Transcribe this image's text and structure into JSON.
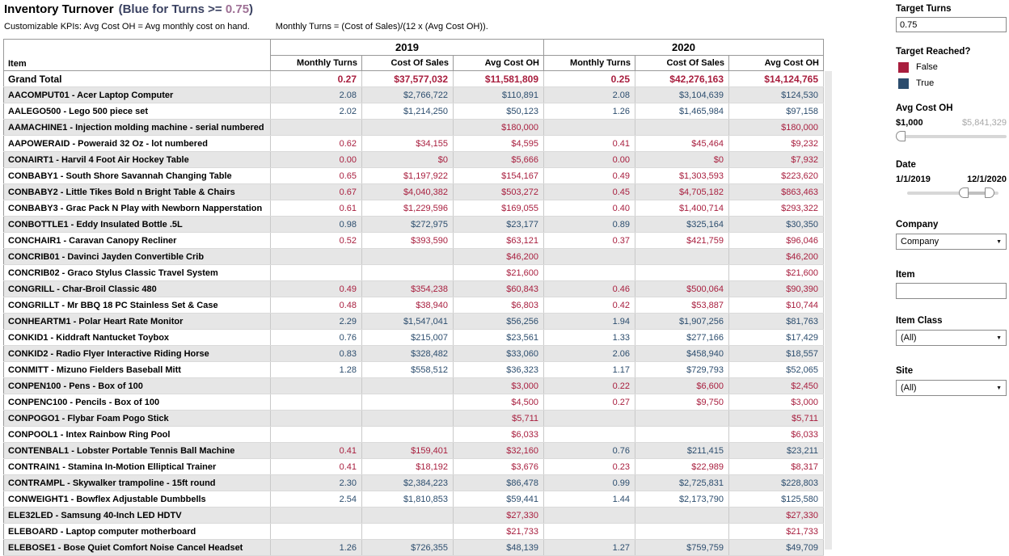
{
  "header": {
    "title": "Inventory Turnover",
    "title_note_prefix": "(Blue for Turns >= ",
    "title_note_value": "0.75",
    "title_note_suffix": ")",
    "subtitle_left": "Customizable KPIs: Avg Cost OH = Avg monthly cost on hand.",
    "subtitle_right": "Monthly Turns = (Cost of Sales)/(12 x (Avg Cost OH))."
  },
  "colors": {
    "target_not_reached": "#a81e3e",
    "target_reached": "#2c4d6e",
    "row_stripe": "#e6e6e6"
  },
  "table": {
    "item_header": "Item",
    "year_groups": [
      "2019",
      "2020"
    ],
    "columns": [
      "Monthly Turns",
      "Cost Of Sales",
      "Avg Cost OH"
    ],
    "grand_total": {
      "label": "Grand Total",
      "y2019": {
        "turns": "0.27",
        "cost_of_sales": "$37,577,032",
        "avg_cost_oh": "$11,581,809"
      },
      "y2020": {
        "turns": "0.25",
        "cost_of_sales": "$42,276,163",
        "avg_cost_oh": "$14,124,765"
      }
    },
    "rows": [
      {
        "item": "AACOMPUT01 - Acer Laptop Computer",
        "y2019": {
          "turns": "2.08",
          "cost_of_sales": "$2,766,722",
          "avg_cost_oh": "$110,891",
          "target_reached": true
        },
        "y2020": {
          "turns": "2.08",
          "cost_of_sales": "$3,104,639",
          "avg_cost_oh": "$124,530",
          "target_reached": true
        }
      },
      {
        "item": "AALEGO500 - Lego 500 piece set",
        "y2019": {
          "turns": "2.02",
          "cost_of_sales": "$1,214,250",
          "avg_cost_oh": "$50,123",
          "target_reached": true
        },
        "y2020": {
          "turns": "1.26",
          "cost_of_sales": "$1,465,984",
          "avg_cost_oh": "$97,158",
          "target_reached": true
        }
      },
      {
        "item": "AAMACHINE1 - Injection molding machine - serial numbered",
        "y2019": {
          "turns": "",
          "cost_of_sales": "",
          "avg_cost_oh": "$180,000",
          "target_reached": false
        },
        "y2020": {
          "turns": "",
          "cost_of_sales": "",
          "avg_cost_oh": "$180,000",
          "target_reached": false
        }
      },
      {
        "item": "AAPOWERAID - Poweraid 32 Oz - lot numbered",
        "y2019": {
          "turns": "0.62",
          "cost_of_sales": "$34,155",
          "avg_cost_oh": "$4,595",
          "target_reached": false
        },
        "y2020": {
          "turns": "0.41",
          "cost_of_sales": "$45,464",
          "avg_cost_oh": "$9,232",
          "target_reached": false
        }
      },
      {
        "item": "CONAIRT1 - Harvil 4 Foot Air Hockey Table",
        "y2019": {
          "turns": "0.00",
          "cost_of_sales": "$0",
          "avg_cost_oh": "$5,666",
          "target_reached": false
        },
        "y2020": {
          "turns": "0.00",
          "cost_of_sales": "$0",
          "avg_cost_oh": "$7,932",
          "target_reached": false
        }
      },
      {
        "item": "CONBABY1 - South Shore Savannah Changing Table",
        "y2019": {
          "turns": "0.65",
          "cost_of_sales": "$1,197,922",
          "avg_cost_oh": "$154,167",
          "target_reached": false
        },
        "y2020": {
          "turns": "0.49",
          "cost_of_sales": "$1,303,593",
          "avg_cost_oh": "$223,620",
          "target_reached": false
        }
      },
      {
        "item": "CONBABY2 - Little Tikes Bold n Bright Table & Chairs",
        "y2019": {
          "turns": "0.67",
          "cost_of_sales": "$4,040,382",
          "avg_cost_oh": "$503,272",
          "target_reached": false
        },
        "y2020": {
          "turns": "0.45",
          "cost_of_sales": "$4,705,182",
          "avg_cost_oh": "$863,463",
          "target_reached": false
        }
      },
      {
        "item": "CONBABY3 - Grac Pack N Play with Newborn Napperstation",
        "y2019": {
          "turns": "0.61",
          "cost_of_sales": "$1,229,596",
          "avg_cost_oh": "$169,055",
          "target_reached": false
        },
        "y2020": {
          "turns": "0.40",
          "cost_of_sales": "$1,400,714",
          "avg_cost_oh": "$293,322",
          "target_reached": false
        }
      },
      {
        "item": "CONBOTTLE1 - Eddy Insulated Bottle .5L",
        "y2019": {
          "turns": "0.98",
          "cost_of_sales": "$272,975",
          "avg_cost_oh": "$23,177",
          "target_reached": true
        },
        "y2020": {
          "turns": "0.89",
          "cost_of_sales": "$325,164",
          "avg_cost_oh": "$30,350",
          "target_reached": true
        }
      },
      {
        "item": "CONCHAIR1 - Caravan Canopy Recliner",
        "y2019": {
          "turns": "0.52",
          "cost_of_sales": "$393,590",
          "avg_cost_oh": "$63,121",
          "target_reached": false
        },
        "y2020": {
          "turns": "0.37",
          "cost_of_sales": "$421,759",
          "avg_cost_oh": "$96,046",
          "target_reached": false
        }
      },
      {
        "item": "CONCRIB01 - Davinci Jayden Convertible Crib",
        "y2019": {
          "turns": "",
          "cost_of_sales": "",
          "avg_cost_oh": "$46,200",
          "target_reached": false
        },
        "y2020": {
          "turns": "",
          "cost_of_sales": "",
          "avg_cost_oh": "$46,200",
          "target_reached": false
        }
      },
      {
        "item": "CONCRIB02 - Graco Stylus Classic Travel System",
        "y2019": {
          "turns": "",
          "cost_of_sales": "",
          "avg_cost_oh": "$21,600",
          "target_reached": false
        },
        "y2020": {
          "turns": "",
          "cost_of_sales": "",
          "avg_cost_oh": "$21,600",
          "target_reached": false
        }
      },
      {
        "item": "CONGRILL - Char-Broil Classic 480",
        "y2019": {
          "turns": "0.49",
          "cost_of_sales": "$354,238",
          "avg_cost_oh": "$60,843",
          "target_reached": false
        },
        "y2020": {
          "turns": "0.46",
          "cost_of_sales": "$500,064",
          "avg_cost_oh": "$90,390",
          "target_reached": false
        }
      },
      {
        "item": "CONGRILLT - Mr BBQ 18 PC Stainless Set & Case",
        "y2019": {
          "turns": "0.48",
          "cost_of_sales": "$38,940",
          "avg_cost_oh": "$6,803",
          "target_reached": false
        },
        "y2020": {
          "turns": "0.42",
          "cost_of_sales": "$53,887",
          "avg_cost_oh": "$10,744",
          "target_reached": false
        }
      },
      {
        "item": "CONHEARTM1 - Polar Heart Rate Monitor",
        "y2019": {
          "turns": "2.29",
          "cost_of_sales": "$1,547,041",
          "avg_cost_oh": "$56,256",
          "target_reached": true
        },
        "y2020": {
          "turns": "1.94",
          "cost_of_sales": "$1,907,256",
          "avg_cost_oh": "$81,763",
          "target_reached": true
        }
      },
      {
        "item": "CONKID1 - Kiddraft Nantucket Toybox",
        "y2019": {
          "turns": "0.76",
          "cost_of_sales": "$215,007",
          "avg_cost_oh": "$23,561",
          "target_reached": true
        },
        "y2020": {
          "turns": "1.33",
          "cost_of_sales": "$277,166",
          "avg_cost_oh": "$17,429",
          "target_reached": true
        }
      },
      {
        "item": "CONKID2 - Radio Flyer Interactive Riding Horse",
        "y2019": {
          "turns": "0.83",
          "cost_of_sales": "$328,482",
          "avg_cost_oh": "$33,060",
          "target_reached": true
        },
        "y2020": {
          "turns": "2.06",
          "cost_of_sales": "$458,940",
          "avg_cost_oh": "$18,557",
          "target_reached": true
        }
      },
      {
        "item": "CONMITT - Mizuno Fielders Baseball Mitt",
        "y2019": {
          "turns": "1.28",
          "cost_of_sales": "$558,512",
          "avg_cost_oh": "$36,323",
          "target_reached": true
        },
        "y2020": {
          "turns": "1.17",
          "cost_of_sales": "$729,793",
          "avg_cost_oh": "$52,065",
          "target_reached": true
        }
      },
      {
        "item": "CONPEN100 - Pens - Box of 100",
        "y2019": {
          "turns": "",
          "cost_of_sales": "",
          "avg_cost_oh": "$3,000",
          "target_reached": false
        },
        "y2020": {
          "turns": "0.22",
          "cost_of_sales": "$6,600",
          "avg_cost_oh": "$2,450",
          "target_reached": false
        }
      },
      {
        "item": "CONPENC100 - Pencils - Box of 100",
        "y2019": {
          "turns": "",
          "cost_of_sales": "",
          "avg_cost_oh": "$4,500",
          "target_reached": false
        },
        "y2020": {
          "turns": "0.27",
          "cost_of_sales": "$9,750",
          "avg_cost_oh": "$3,000",
          "target_reached": false
        }
      },
      {
        "item": "CONPOGO1 - Flybar Foam Pogo Stick",
        "y2019": {
          "turns": "",
          "cost_of_sales": "",
          "avg_cost_oh": "$5,711",
          "target_reached": false
        },
        "y2020": {
          "turns": "",
          "cost_of_sales": "",
          "avg_cost_oh": "$5,711",
          "target_reached": false
        }
      },
      {
        "item": "CONPOOL1 - Intex Rainbow Ring Pool",
        "y2019": {
          "turns": "",
          "cost_of_sales": "",
          "avg_cost_oh": "$6,033",
          "target_reached": false
        },
        "y2020": {
          "turns": "",
          "cost_of_sales": "",
          "avg_cost_oh": "$6,033",
          "target_reached": false
        }
      },
      {
        "item": "CONTENBAL1 - Lobster Portable Tennis Ball Machine",
        "y2019": {
          "turns": "0.41",
          "cost_of_sales": "$159,401",
          "avg_cost_oh": "$32,160",
          "target_reached": false
        },
        "y2020": {
          "turns": "0.76",
          "cost_of_sales": "$211,415",
          "avg_cost_oh": "$23,211",
          "target_reached": true
        }
      },
      {
        "item": "CONTRAIN1 - Stamina In-Motion Elliptical Trainer",
        "y2019": {
          "turns": "0.41",
          "cost_of_sales": "$18,192",
          "avg_cost_oh": "$3,676",
          "target_reached": false
        },
        "y2020": {
          "turns": "0.23",
          "cost_of_sales": "$22,989",
          "avg_cost_oh": "$8,317",
          "target_reached": false
        }
      },
      {
        "item": "CONTRAMPL - Skywalker trampoline - 15ft round",
        "y2019": {
          "turns": "2.30",
          "cost_of_sales": "$2,384,223",
          "avg_cost_oh": "$86,478",
          "target_reached": true
        },
        "y2020": {
          "turns": "0.99",
          "cost_of_sales": "$2,725,831",
          "avg_cost_oh": "$228,803",
          "target_reached": true
        }
      },
      {
        "item": "CONWEIGHT1 - Bowflex Adjustable Dumbbells",
        "y2019": {
          "turns": "2.54",
          "cost_of_sales": "$1,810,853",
          "avg_cost_oh": "$59,441",
          "target_reached": true
        },
        "y2020": {
          "turns": "1.44",
          "cost_of_sales": "$2,173,790",
          "avg_cost_oh": "$125,580",
          "target_reached": true
        }
      },
      {
        "item": "ELE32LED - Samsung 40-Inch LED HDTV",
        "y2019": {
          "turns": "",
          "cost_of_sales": "",
          "avg_cost_oh": "$27,330",
          "target_reached": false
        },
        "y2020": {
          "turns": "",
          "cost_of_sales": "",
          "avg_cost_oh": "$27,330",
          "target_reached": false
        }
      },
      {
        "item": "ELEBOARD - Laptop computer motherboard",
        "y2019": {
          "turns": "",
          "cost_of_sales": "",
          "avg_cost_oh": "$21,733",
          "target_reached": false
        },
        "y2020": {
          "turns": "",
          "cost_of_sales": "",
          "avg_cost_oh": "$21,733",
          "target_reached": false
        }
      },
      {
        "item": "ELEBOSE1 - Bose Quiet Comfort Noise Cancel Headset",
        "y2019": {
          "turns": "1.26",
          "cost_of_sales": "$726,355",
          "avg_cost_oh": "$48,139",
          "target_reached": true
        },
        "y2020": {
          "turns": "1.27",
          "cost_of_sales": "$759,759",
          "avg_cost_oh": "$49,709",
          "target_reached": true
        }
      }
    ]
  },
  "sidebar": {
    "target_turns": {
      "label": "Target Turns",
      "value": "0.75"
    },
    "target_reached": {
      "label": "Target Reached?",
      "items": [
        {
          "label": "False"
        },
        {
          "label": "True"
        }
      ]
    },
    "avg_cost_oh": {
      "label": "Avg Cost OH",
      "min": "$1,000",
      "max": "$5,841,329"
    },
    "date": {
      "label": "Date",
      "start": "1/1/2019",
      "end": "12/1/2020"
    },
    "company": {
      "label": "Company",
      "value": "Company"
    },
    "item": {
      "label": "Item",
      "value": ""
    },
    "item_class": {
      "label": "Item Class",
      "value": "(All)"
    },
    "site": {
      "label": "Site",
      "value": "(All)"
    }
  }
}
